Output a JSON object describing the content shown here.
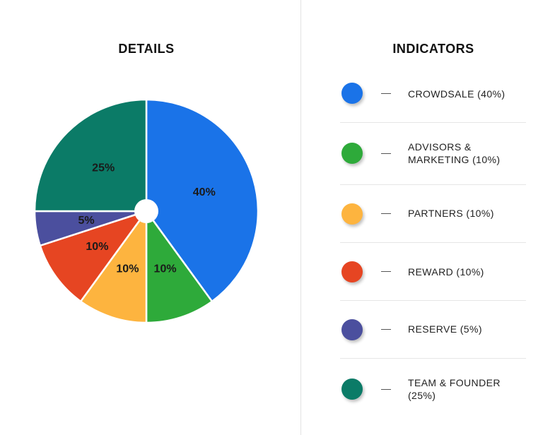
{
  "details": {
    "title": "DETAILS"
  },
  "indicators": {
    "title": "INDICATORS",
    "items": [
      {
        "label": "CROWDSALE (40%)",
        "color": "#1a73e8"
      },
      {
        "label": "ADVISORS & MARKETING (10%)",
        "color": "#2eaa3a"
      },
      {
        "label": "PARTNERS (10%)",
        "color": "#fdb43f"
      },
      {
        "label": "REWARD (10%)",
        "color": "#e64522"
      },
      {
        "label": "RESERVE (5%)",
        "color": "#4b4f9e"
      },
      {
        "label": "TEAM & FOUNDER (25%)",
        "color": "#0b7b67"
      }
    ]
  },
  "chart_data": {
    "type": "pie",
    "title": "DETAILS",
    "categories": [
      "CROWDSALE",
      "ADVISORS & MARKETING",
      "PARTNERS",
      "REWARD",
      "RESERVE",
      "TEAM & FOUNDER"
    ],
    "values": [
      40,
      10,
      10,
      10,
      5,
      25
    ],
    "data_labels": [
      "40%",
      "10%",
      "10%",
      "10%",
      "5%",
      "25%"
    ],
    "colors": [
      "#1a73e8",
      "#2eaa3a",
      "#fdb43f",
      "#e64522",
      "#4b4f9e",
      "#0b7b67"
    ],
    "legend": "right"
  }
}
